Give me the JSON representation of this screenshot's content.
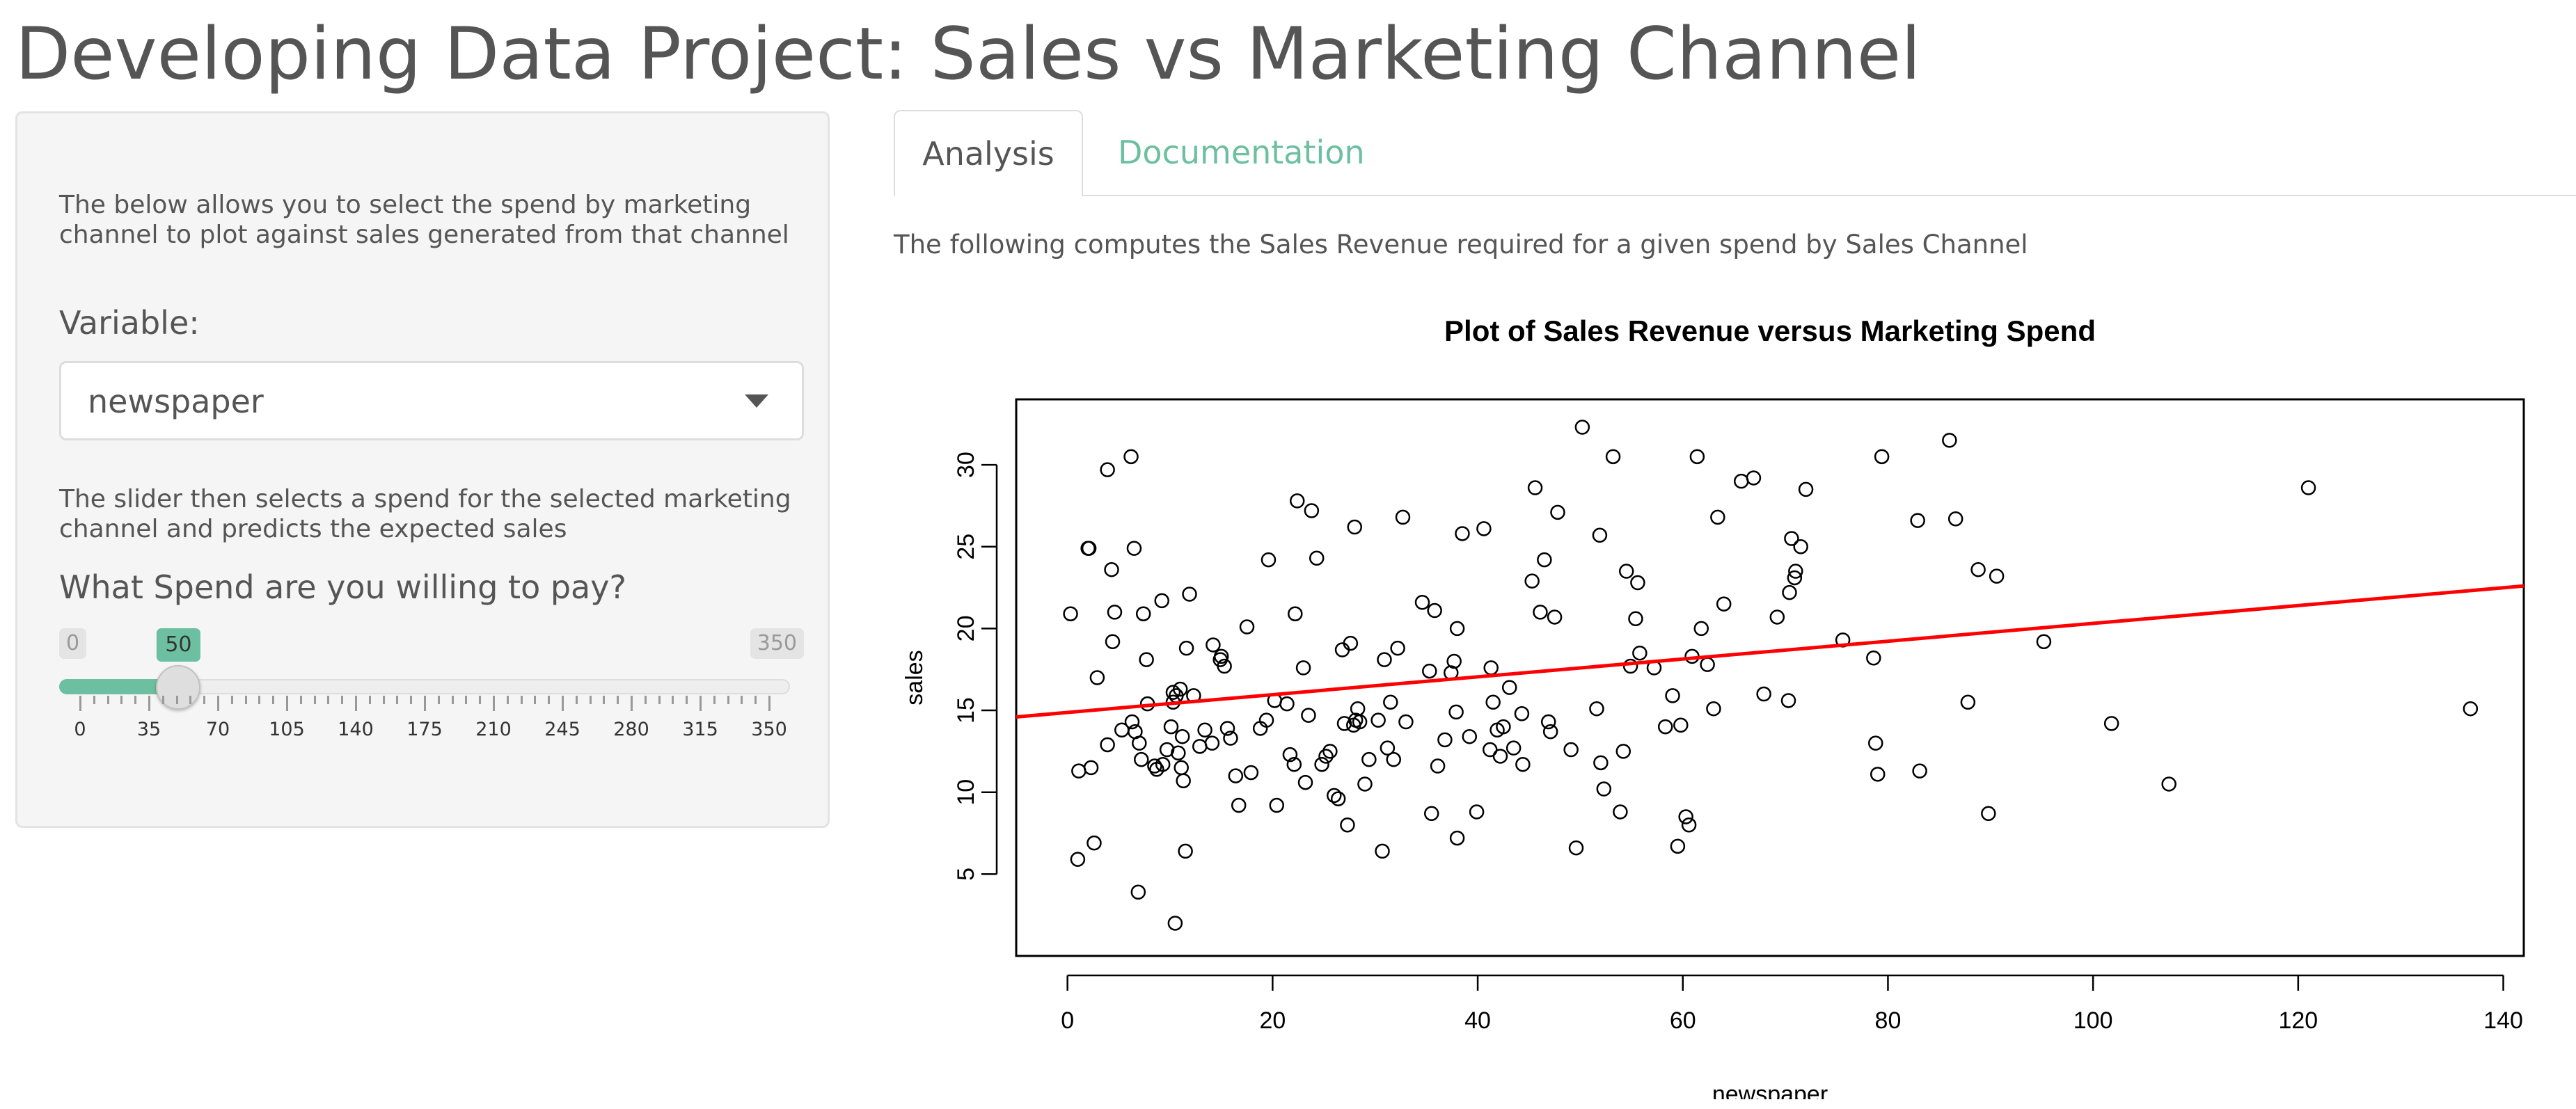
{
  "page": {
    "title": "Developing Data Project: Sales vs Marketing Channel"
  },
  "sidebar": {
    "intro_text": "The below allows you to select the spend by marketing channel to plot against sales generated from that channel",
    "variable_label": "Variable:",
    "variable_value": "newspaper",
    "slider_help_text": "The slider then selects a spend for the selected marketing channel and predicts the expected sales",
    "slider_label": "What Spend are you willing to pay?",
    "slider": {
      "min": 0,
      "max": 350,
      "value": 50,
      "min_label": "0",
      "max_label": "350",
      "value_label": "50",
      "tick_labels": [
        "0",
        "35",
        "70",
        "105",
        "140",
        "175",
        "210",
        "245",
        "280",
        "315",
        "350"
      ]
    }
  },
  "tabs": [
    {
      "label": "Analysis",
      "active": true
    },
    {
      "label": "Documentation",
      "active": false
    }
  ],
  "main": {
    "description": "The following computes the Sales Revenue required for a given spend by Sales Channel"
  },
  "colors": {
    "accent": "#6cbfa1",
    "regression_line": "#ff0000",
    "text": "#555555"
  },
  "chart_data": {
    "type": "scatter",
    "title": "Plot of Sales Revenue versus Marketing Spend",
    "xlabel": "newspaper",
    "ylabel": "sales",
    "xlim": [
      -5,
      142
    ],
    "ylim": [
      0,
      34
    ],
    "xticks": [
      0,
      20,
      40,
      60,
      80,
      100,
      120,
      140
    ],
    "yticks": [
      5,
      10,
      15,
      20,
      25,
      30
    ],
    "grid": false,
    "regression_line": {
      "x": [
        -5,
        142
      ],
      "y": [
        14.6,
        22.6
      ],
      "color": "#ff0000"
    },
    "points": [
      [
        0.3,
        20.9
      ],
      [
        1.0,
        5.9
      ],
      [
        1.1,
        11.3
      ],
      [
        2.0,
        24.9
      ],
      [
        2.1,
        24.9
      ],
      [
        2.3,
        11.5
      ],
      [
        2.6,
        6.9
      ],
      [
        2.9,
        17.0
      ],
      [
        3.9,
        12.9
      ],
      [
        3.9,
        29.7
      ],
      [
        4.3,
        23.6
      ],
      [
        4.4,
        19.2
      ],
      [
        4.6,
        21.0
      ],
      [
        5.3,
        13.8
      ],
      [
        6.2,
        30.5
      ],
      [
        6.3,
        14.3
      ],
      [
        6.5,
        24.9
      ],
      [
        6.6,
        13.7
      ],
      [
        6.9,
        3.9
      ],
      [
        7.0,
        13.0
      ],
      [
        7.2,
        12.0
      ],
      [
        7.4,
        20.9
      ],
      [
        7.7,
        18.1
      ],
      [
        7.8,
        15.4
      ],
      [
        8.5,
        11.6
      ],
      [
        8.7,
        11.4
      ],
      [
        9.2,
        21.7
      ],
      [
        9.3,
        11.7
      ],
      [
        9.7,
        12.6
      ],
      [
        10.1,
        14.0
      ],
      [
        10.3,
        15.5
      ],
      [
        10.3,
        16.1
      ],
      [
        10.5,
        2.0
      ],
      [
        10.6,
        15.9
      ],
      [
        10.8,
        12.4
      ],
      [
        11.0,
        16.3
      ],
      [
        11.1,
        11.5
      ],
      [
        11.2,
        13.4
      ],
      [
        11.3,
        10.7
      ],
      [
        11.5,
        6.4
      ],
      [
        11.6,
        18.8
      ],
      [
        11.9,
        22.1
      ],
      [
        12.3,
        15.9
      ],
      [
        12.9,
        12.8
      ],
      [
        13.4,
        13.8
      ],
      [
        14.1,
        13.0
      ],
      [
        14.2,
        19.0
      ],
      [
        14.9,
        18.1
      ],
      [
        15.0,
        18.3
      ],
      [
        15.3,
        17.7
      ],
      [
        15.6,
        13.9
      ],
      [
        15.9,
        13.3
      ],
      [
        16.4,
        11.0
      ],
      [
        16.7,
        9.2
      ],
      [
        17.5,
        20.1
      ],
      [
        17.9,
        11.2
      ],
      [
        18.8,
        13.9
      ],
      [
        19.4,
        14.4
      ],
      [
        19.6,
        24.2
      ],
      [
        20.2,
        15.6
      ],
      [
        20.4,
        9.2
      ],
      [
        21.4,
        15.4
      ],
      [
        21.7,
        12.3
      ],
      [
        22.1,
        11.7
      ],
      [
        22.2,
        20.9
      ],
      [
        22.4,
        27.8
      ],
      [
        23.0,
        17.6
      ],
      [
        23.2,
        10.6
      ],
      [
        23.5,
        14.7
      ],
      [
        23.8,
        27.2
      ],
      [
        24.3,
        24.3
      ],
      [
        24.8,
        11.7
      ],
      [
        25.2,
        12.2
      ],
      [
        25.6,
        12.5
      ],
      [
        26.0,
        9.8
      ],
      [
        26.4,
        9.6
      ],
      [
        26.8,
        18.7
      ],
      [
        27.0,
        14.2
      ],
      [
        27.3,
        8.0
      ],
      [
        27.6,
        19.1
      ],
      [
        27.9,
        14.1
      ],
      [
        28.0,
        26.2
      ],
      [
        28.1,
        14.4
      ],
      [
        28.3,
        15.1
      ],
      [
        28.5,
        14.3
      ],
      [
        29.0,
        10.5
      ],
      [
        29.4,
        12.0
      ],
      [
        30.3,
        14.4
      ],
      [
        30.7,
        6.4
      ],
      [
        30.9,
        18.1
      ],
      [
        31.2,
        12.7
      ],
      [
        31.5,
        15.5
      ],
      [
        31.8,
        12.0
      ],
      [
        32.2,
        18.8
      ],
      [
        32.7,
        26.8
      ],
      [
        33.0,
        14.3
      ],
      [
        34.6,
        21.6
      ],
      [
        35.3,
        17.4
      ],
      [
        35.5,
        8.7
      ],
      [
        35.8,
        21.1
      ],
      [
        36.1,
        11.6
      ],
      [
        36.8,
        13.2
      ],
      [
        37.4,
        17.3
      ],
      [
        37.7,
        18.0
      ],
      [
        37.9,
        14.9
      ],
      [
        38.0,
        7.2
      ],
      [
        38.0,
        20.0
      ],
      [
        38.5,
        25.8
      ],
      [
        39.2,
        13.4
      ],
      [
        39.9,
        8.8
      ],
      [
        40.6,
        26.1
      ],
      [
        41.2,
        12.6
      ],
      [
        41.3,
        17.6
      ],
      [
        41.5,
        15.5
      ],
      [
        41.9,
        13.8
      ],
      [
        42.2,
        12.2
      ],
      [
        42.5,
        14.0
      ],
      [
        43.1,
        16.4
      ],
      [
        43.5,
        12.7
      ],
      [
        44.3,
        14.8
      ],
      [
        44.4,
        11.7
      ],
      [
        45.3,
        22.9
      ],
      [
        45.6,
        28.6
      ],
      [
        46.1,
        21.0
      ],
      [
        46.5,
        24.2
      ],
      [
        46.9,
        14.3
      ],
      [
        47.1,
        13.7
      ],
      [
        47.5,
        20.7
      ],
      [
        47.8,
        27.1
      ],
      [
        49.1,
        12.6
      ],
      [
        49.6,
        6.6
      ],
      [
        50.2,
        32.3
      ],
      [
        51.6,
        15.1
      ],
      [
        51.9,
        25.7
      ],
      [
        52.0,
        11.8
      ],
      [
        52.3,
        10.2
      ],
      [
        53.2,
        30.5
      ],
      [
        53.9,
        8.8
      ],
      [
        54.2,
        12.5
      ],
      [
        54.5,
        23.5
      ],
      [
        54.9,
        17.7
      ],
      [
        55.4,
        20.6
      ],
      [
        55.6,
        22.8
      ],
      [
        55.8,
        18.5
      ],
      [
        57.2,
        17.6
      ],
      [
        58.3,
        14.0
      ],
      [
        59.0,
        15.9
      ],
      [
        59.5,
        6.7
      ],
      [
        59.8,
        14.1
      ],
      [
        60.3,
        8.5
      ],
      [
        60.6,
        8.0
      ],
      [
        60.9,
        18.3
      ],
      [
        61.4,
        30.5
      ],
      [
        61.8,
        20.0
      ],
      [
        62.4,
        17.8
      ],
      [
        63.0,
        15.1
      ],
      [
        63.4,
        26.8
      ],
      [
        64.0,
        21.5
      ],
      [
        65.7,
        29.0
      ],
      [
        66.9,
        29.2
      ],
      [
        67.9,
        16.0
      ],
      [
        69.2,
        20.7
      ],
      [
        70.3,
        15.6
      ],
      [
        70.4,
        22.2
      ],
      [
        70.6,
        25.5
      ],
      [
        70.9,
        23.1
      ],
      [
        71.0,
        23.5
      ],
      [
        71.5,
        25.0
      ],
      [
        72.0,
        28.5
      ],
      [
        75.6,
        19.3
      ],
      [
        78.6,
        18.2
      ],
      [
        78.8,
        13.0
      ],
      [
        79.0,
        11.1
      ],
      [
        79.4,
        30.5
      ],
      [
        82.9,
        26.6
      ],
      [
        83.1,
        11.3
      ],
      [
        86.0,
        31.5
      ],
      [
        86.6,
        26.7
      ],
      [
        87.8,
        15.5
      ],
      [
        88.8,
        23.6
      ],
      [
        89.8,
        8.7
      ],
      [
        90.6,
        23.2
      ],
      [
        95.2,
        19.2
      ],
      [
        101.8,
        14.2
      ],
      [
        107.4,
        10.5
      ],
      [
        121.0,
        28.6
      ],
      [
        136.8,
        15.1
      ]
    ]
  }
}
